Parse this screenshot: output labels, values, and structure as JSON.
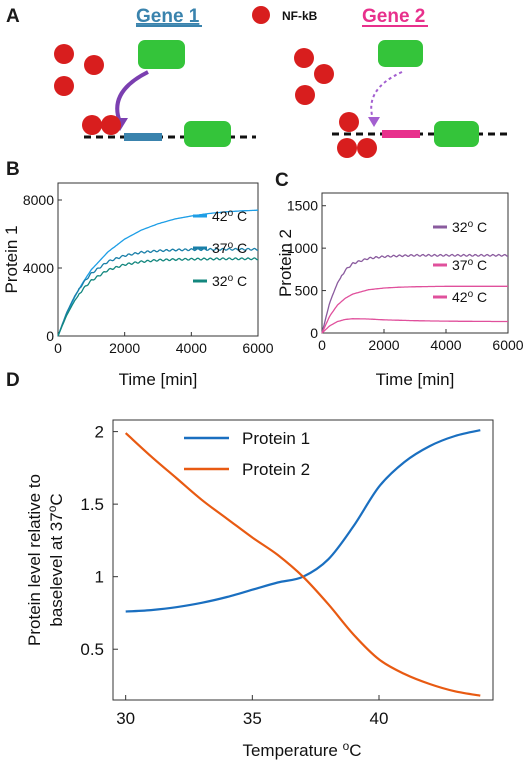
{
  "panel_a": {
    "letter": "A",
    "gene1_label": "Gene 1",
    "gene2_label": "Gene 2",
    "nfkb_label": "NF-kB",
    "colors": {
      "gene1": "#3a83ad",
      "gene2": "#e8308c",
      "nfkb": "#d81e1e",
      "box": "#34c43a",
      "arrow": "#7b3fb0"
    }
  },
  "chart_data": [
    {
      "panel": "B",
      "type": "line",
      "xlabel": "Time [min]",
      "ylabel": "Protein 1",
      "xlim": [
        0,
        6000
      ],
      "ylim": [
        0,
        9000
      ],
      "xticks": [
        "0",
        "2000",
        "4000",
        "6000"
      ],
      "yticks": [
        "0",
        "4000",
        "8000"
      ],
      "xtick_values": [
        0,
        2000,
        4000,
        6000
      ],
      "ytick_values": [
        0,
        4000,
        8000
      ],
      "grid": false,
      "legend_position": "right",
      "series": [
        {
          "name": "42",
          "label_suffix": "o C",
          "color": "#1e9ee6",
          "oscillating": false,
          "x": [
            0,
            250,
            500,
            750,
            1000,
            1500,
            2000,
            2500,
            3000,
            3500,
            4000,
            4500,
            5000,
            5500,
            6000
          ],
          "y": [
            0,
            1230,
            2290,
            3160,
            3900,
            4950,
            5700,
            6230,
            6600,
            6880,
            7060,
            7200,
            7300,
            7360,
            7400
          ]
        },
        {
          "name": "37",
          "label_suffix": "o C",
          "color": "#1a7fa8",
          "oscillating": true,
          "x": [
            0,
            250,
            500,
            750,
            1000,
            1500,
            2000,
            2500,
            3000,
            3500,
            4000,
            4500,
            5000,
            5500,
            6000
          ],
          "y": [
            0,
            1330,
            2350,
            3100,
            3680,
            4380,
            4730,
            4920,
            5010,
            5060,
            5080,
            5090,
            5100,
            5100,
            5100
          ]
        },
        {
          "name": "32",
          "label_suffix": "o C",
          "color": "#13877e",
          "oscillating": true,
          "x": [
            0,
            250,
            500,
            750,
            1000,
            1500,
            2000,
            2500,
            3000,
            3500,
            4000,
            4500,
            5000,
            5500,
            6000
          ],
          "y": [
            0,
            1180,
            2080,
            2760,
            3260,
            3880,
            4200,
            4370,
            4460,
            4500,
            4520,
            4530,
            4540,
            4540,
            4540
          ]
        }
      ]
    },
    {
      "panel": "C",
      "type": "line",
      "xlabel": "Time [min]",
      "ylabel": "Protein 2",
      "xlim": [
        0,
        6000
      ],
      "ylim": [
        0,
        1650
      ],
      "xticks": [
        "0",
        "2000",
        "4000",
        "6000"
      ],
      "yticks": [
        "0",
        "500",
        "1000",
        "1500"
      ],
      "xtick_values": [
        0,
        2000,
        4000,
        6000
      ],
      "ytick_values": [
        0,
        500,
        1000,
        1500
      ],
      "grid": false,
      "legend_position": "right",
      "series": [
        {
          "name": "32",
          "label_suffix": "o C",
          "color": "#8a5b9e",
          "oscillating": true,
          "x": [
            0,
            250,
            500,
            750,
            1000,
            1500,
            2000,
            2500,
            3000,
            3500,
            4000,
            4500,
            5000,
            5500,
            6000
          ],
          "y": [
            0,
            360,
            590,
            740,
            820,
            880,
            900,
            910,
            915,
            915,
            915,
            915,
            915,
            915,
            915
          ]
        },
        {
          "name": "37",
          "label_suffix": "o C",
          "color": "#e0509c",
          "oscillating": false,
          "x": [
            0,
            250,
            500,
            750,
            1000,
            1500,
            2000,
            2500,
            3000,
            3500,
            4000,
            4500,
            5000,
            5500,
            6000
          ],
          "y": [
            0,
            200,
            330,
            410,
            460,
            510,
            530,
            540,
            545,
            548,
            550,
            550,
            550,
            550,
            550
          ]
        },
        {
          "name": "42",
          "label_suffix": "o C",
          "color": "#e0509c",
          "oscillating": false,
          "x": [
            0,
            250,
            500,
            750,
            1000,
            1500,
            2000,
            2500,
            3000,
            3500,
            4000,
            4500,
            5000,
            5500,
            6000
          ],
          "y": [
            0,
            85,
            135,
            160,
            168,
            165,
            155,
            150,
            145,
            142,
            140,
            138,
            137,
            136,
            135
          ]
        }
      ]
    },
    {
      "panel": "D",
      "type": "line",
      "xlabel": "Temperature °C",
      "xlabel_main": "Temperature ",
      "xlabel_sup": "o",
      "xlabel_unit": "C",
      "ylabel_line1": "Protein level relative to",
      "ylabel_line2": "baselevel at 37°C",
      "ylabel_line2_main": "baselevel at 37",
      "ylabel_line2_sup": "o",
      "ylabel_line2_unit": "C",
      "xlim": [
        29.5,
        44.5
      ],
      "ylim": [
        0.15,
        2.08
      ],
      "xticks": [
        "30",
        "35",
        "40"
      ],
      "yticks": [
        "0.5",
        "1",
        "1.5",
        "2"
      ],
      "xtick_values": [
        30,
        35,
        40
      ],
      "ytick_values": [
        0.5,
        1,
        1.5,
        2
      ],
      "grid": false,
      "legend_position": "top",
      "series": [
        {
          "name": "Protein 1",
          "color": "#1a6fc0",
          "x": [
            30,
            31,
            32,
            33,
            34,
            35,
            36,
            37,
            38,
            39,
            40,
            41,
            42,
            43,
            44
          ],
          "y": [
            0.76,
            0.77,
            0.79,
            0.82,
            0.86,
            0.91,
            0.96,
            1.0,
            1.12,
            1.35,
            1.62,
            1.79,
            1.9,
            1.97,
            2.01
          ]
        },
        {
          "name": "Protein 2",
          "color": "#e85a12",
          "x": [
            30,
            31,
            32,
            33,
            34,
            35,
            36,
            37,
            38,
            39,
            40,
            41,
            42,
            43,
            44
          ],
          "y": [
            1.99,
            1.83,
            1.68,
            1.53,
            1.4,
            1.27,
            1.15,
            1.0,
            0.81,
            0.6,
            0.43,
            0.33,
            0.26,
            0.21,
            0.18
          ]
        }
      ]
    }
  ]
}
